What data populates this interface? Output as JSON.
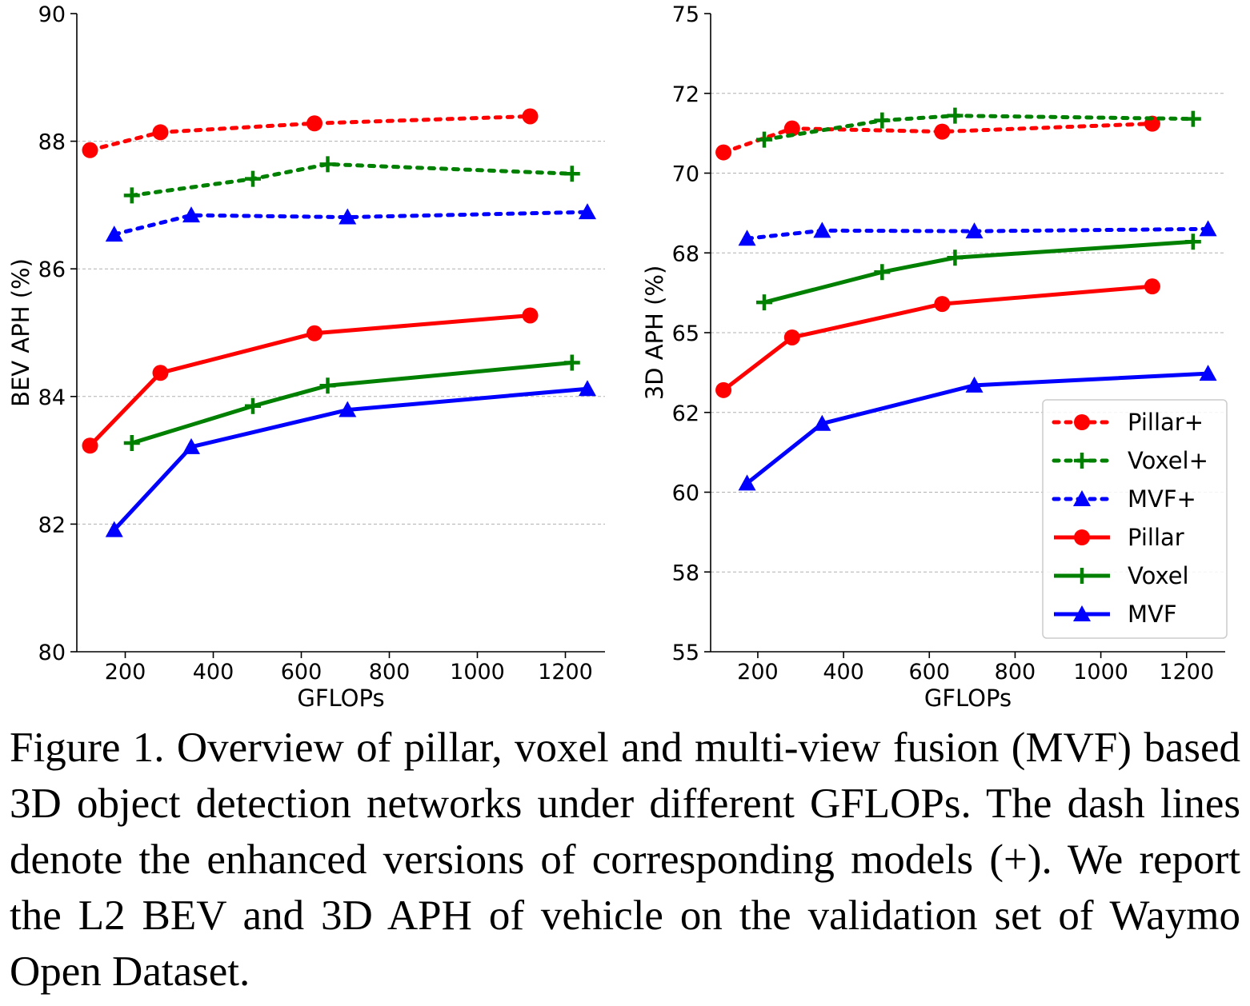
{
  "caption": "Figure 1. Overview of pillar, voxel and multi-view fusion (MVF) based 3D object detection networks under different GFLOPs. The dash lines denote the enhanced versions of corresponding models (+). We report the L2 BEV and 3D APH of vehicle on the validation set of Waymo Open Dataset.",
  "colors": {
    "pillar": "#ff0000",
    "voxel": "#008000",
    "mvf": "#0000ff"
  },
  "chart_data": [
    {
      "type": "line",
      "xlabel": "GFLOPs",
      "ylabel": "BEV APH (%)",
      "xlim": [
        90,
        1290
      ],
      "ylim": [
        80,
        90
      ],
      "xticks": [
        200,
        400,
        600,
        800,
        1000,
        1200
      ],
      "yticks": [
        80,
        82,
        84,
        86,
        88,
        90
      ],
      "ytick_labels": [
        "80",
        "82",
        "84",
        "86",
        "88",
        "90"
      ],
      "grid": "horizontal-dashed",
      "series": [
        {
          "name": "Pillar+",
          "style": "dotted",
          "marker": "circle",
          "color": "#ff0000",
          "x": [
            120,
            280,
            630,
            1120
          ],
          "y": [
            87.86,
            88.14,
            88.28,
            88.39
          ]
        },
        {
          "name": "Voxel+",
          "style": "dotted",
          "marker": "plus",
          "color": "#008000",
          "x": [
            215,
            490,
            660,
            1215
          ],
          "y": [
            87.15,
            87.41,
            87.64,
            87.49
          ]
        },
        {
          "name": "MVF+",
          "style": "dotted",
          "marker": "triangle",
          "color": "#0000ff",
          "x": [
            175,
            350,
            705,
            1250
          ],
          "y": [
            86.54,
            86.84,
            86.81,
            86.89
          ]
        },
        {
          "name": "Pillar",
          "style": "solid",
          "marker": "circle",
          "color": "#ff0000",
          "x": [
            120,
            280,
            630,
            1120
          ],
          "y": [
            83.23,
            84.37,
            84.99,
            85.27
          ]
        },
        {
          "name": "Voxel",
          "style": "solid",
          "marker": "plus",
          "color": "#008000",
          "x": [
            215,
            490,
            660,
            1215
          ],
          "y": [
            83.27,
            83.85,
            84.17,
            84.53
          ]
        },
        {
          "name": "MVF",
          "style": "solid",
          "marker": "triangle",
          "color": "#0000ff",
          "x": [
            175,
            350,
            705,
            1250
          ],
          "y": [
            81.91,
            83.21,
            83.79,
            84.12
          ]
        }
      ]
    },
    {
      "type": "line",
      "xlabel": "GFLOPs",
      "ylabel": "3D APH (%)",
      "xlim": [
        90,
        1290
      ],
      "ylim": [
        55,
        75
      ],
      "xticks": [
        200,
        400,
        600,
        800,
        1000,
        1200
      ],
      "yticks": [
        55,
        57.5,
        60,
        62.5,
        65,
        67.5,
        70,
        72.5,
        75
      ],
      "ytick_labels": [
        "55",
        "58",
        "60",
        "62",
        "65",
        "68",
        "70",
        "72",
        "75"
      ],
      "grid": "horizontal-dashed",
      "legend": "lower-right",
      "series": [
        {
          "name": "Pillar+",
          "style": "dotted",
          "marker": "circle",
          "color": "#ff0000",
          "x": [
            120,
            280,
            630,
            1120
          ],
          "y": [
            70.65,
            71.4,
            71.3,
            71.55
          ]
        },
        {
          "name": "Voxel+",
          "style": "dotted",
          "marker": "plus",
          "color": "#008000",
          "x": [
            215,
            490,
            660,
            1215
          ],
          "y": [
            71.05,
            71.65,
            71.8,
            71.7
          ]
        },
        {
          "name": "MVF+",
          "style": "dotted",
          "marker": "triangle",
          "color": "#0000ff",
          "x": [
            175,
            350,
            705,
            1250
          ],
          "y": [
            67.95,
            68.2,
            68.18,
            68.25
          ]
        },
        {
          "name": "Pillar",
          "style": "solid",
          "marker": "circle",
          "color": "#ff0000",
          "x": [
            120,
            280,
            630,
            1120
          ],
          "y": [
            63.2,
            64.85,
            65.9,
            66.45
          ]
        },
        {
          "name": "Voxel",
          "style": "solid",
          "marker": "plus",
          "color": "#008000",
          "x": [
            215,
            490,
            660,
            1215
          ],
          "y": [
            65.95,
            66.9,
            67.35,
            67.85
          ]
        },
        {
          "name": "MVF",
          "style": "solid",
          "marker": "triangle",
          "color": "#0000ff",
          "x": [
            175,
            350,
            705,
            1250
          ],
          "y": [
            60.28,
            62.15,
            63.35,
            63.72
          ]
        }
      ]
    }
  ]
}
